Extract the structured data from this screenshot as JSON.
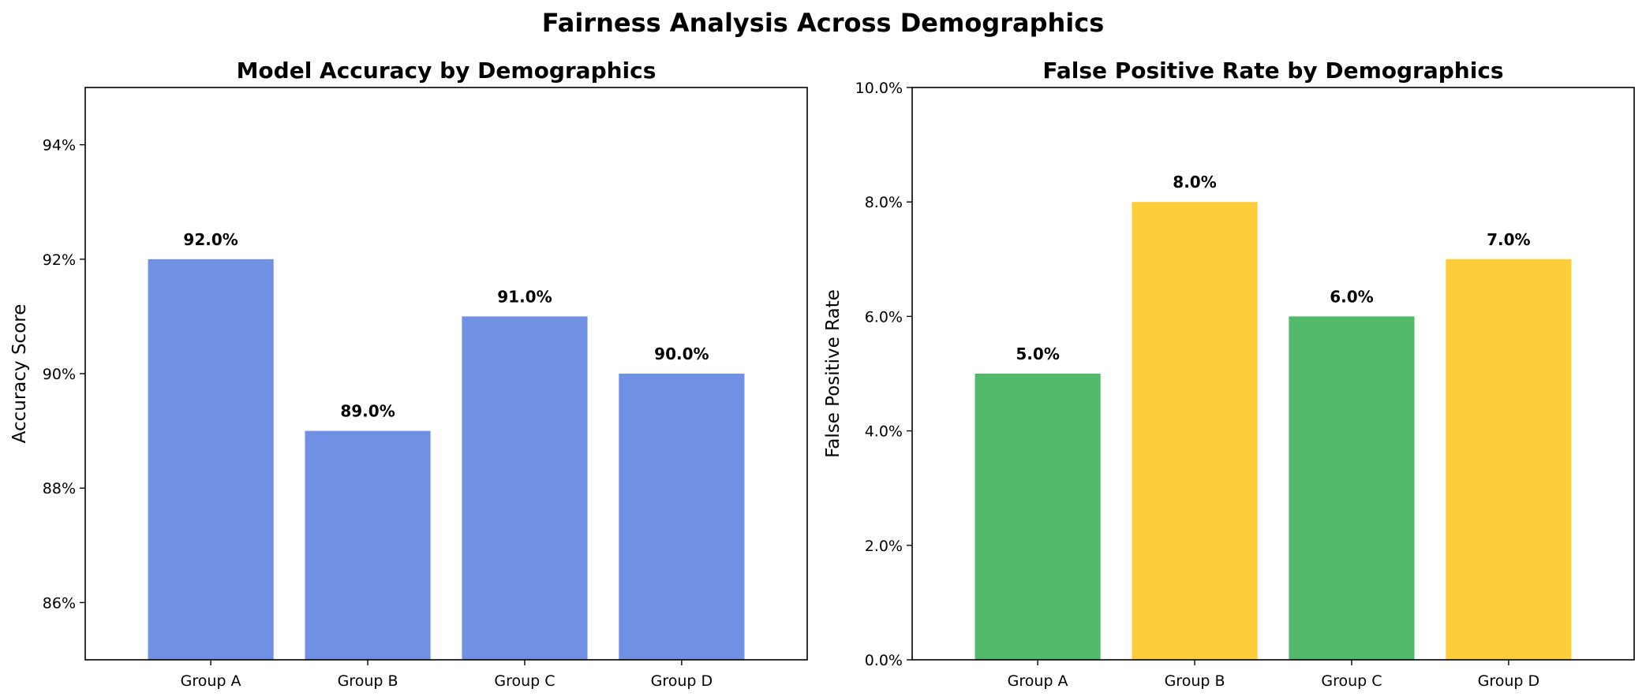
{
  "figure": {
    "title": "Fairness Analysis Across Demographics"
  },
  "chart_data": [
    {
      "type": "bar",
      "title": "Model Accuracy by Demographics",
      "xlabel": "",
      "ylabel": "Accuracy Score",
      "categories": [
        "Group A",
        "Group B",
        "Group C",
        "Group D"
      ],
      "values": [
        0.92,
        0.89,
        0.91,
        0.9
      ],
      "value_labels": [
        "92.0%",
        "89.0%",
        "91.0%",
        "90.0%"
      ],
      "ylim": [
        0.85,
        0.95
      ],
      "yticks": [
        0.86,
        0.88,
        0.9,
        0.92,
        0.94
      ],
      "ytick_labels": [
        "86%",
        "88%",
        "90%",
        "92%",
        "94%"
      ],
      "bar_colors": [
        "#7090e4",
        "#7090e4",
        "#7090e4",
        "#7090e4"
      ],
      "grid": false,
      "legend": "none"
    },
    {
      "type": "bar",
      "title": "False Positive Rate by Demographics",
      "xlabel": "",
      "ylabel": "False Positive Rate",
      "categories": [
        "Group A",
        "Group B",
        "Group C",
        "Group D"
      ],
      "values": [
        0.05,
        0.08,
        0.06,
        0.07
      ],
      "value_labels": [
        "5.0%",
        "8.0%",
        "6.0%",
        "7.0%"
      ],
      "ylim": [
        0.0,
        0.1
      ],
      "yticks": [
        0.0,
        0.02,
        0.04,
        0.06,
        0.08,
        0.1
      ],
      "ytick_labels": [
        "0.0%",
        "2.0%",
        "4.0%",
        "6.0%",
        "8.0%",
        "10.0%"
      ],
      "bar_colors": [
        "#52b86a",
        "#fdcd3c",
        "#52b86a",
        "#fdcd3c"
      ],
      "grid": false,
      "legend": "none"
    }
  ]
}
